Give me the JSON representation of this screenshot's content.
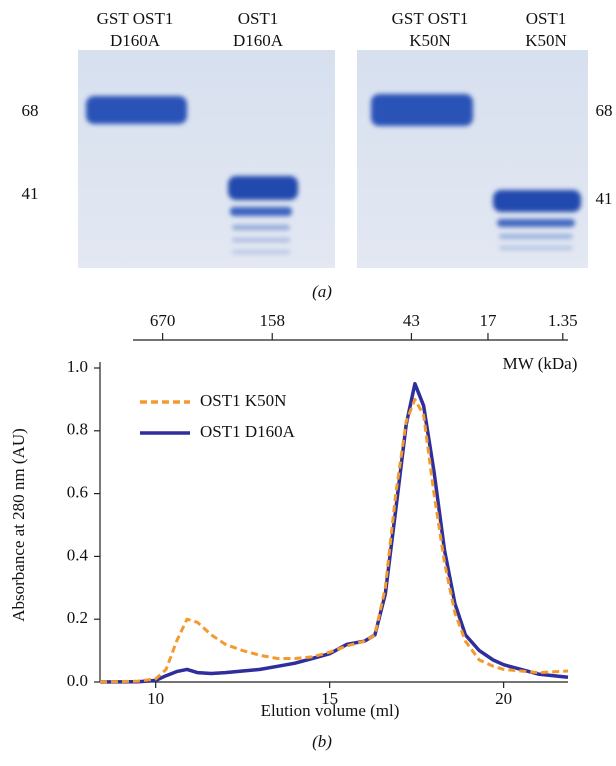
{
  "panel_a": {
    "label": "(a)",
    "gels": [
      {
        "lanes": [
          [
            "GST OST1",
            "D160A"
          ],
          [
            "OST1",
            "D160A"
          ]
        ],
        "markers": [
          "68",
          "41"
        ]
      },
      {
        "lanes": [
          [
            "GST OST1",
            "K50N"
          ],
          [
            "OST1",
            "K50N"
          ]
        ],
        "markers": [
          "68",
          "41"
        ]
      }
    ]
  },
  "chart_data": {
    "type": "line",
    "panel_label": "(b)",
    "x_label": "Elution volume (ml)",
    "y_label": "Absorbance at 280 nm (AU)",
    "x2_label": "MW (kDa)",
    "x": [
      8.4,
      9.5,
      10,
      10.3,
      10.6,
      10.9,
      11.2,
      11.6,
      12,
      12.5,
      13,
      13.5,
      14,
      14.5,
      15,
      15.5,
      16,
      16.3,
      16.6,
      16.9,
      17.2,
      17.45,
      17.7,
      18,
      18.3,
      18.6,
      18.9,
      19.3,
      19.7,
      20,
      21,
      21.85
    ],
    "series": [
      {
        "name": "OST1 K50N",
        "color": "#f39a2e",
        "dash": true,
        "values": [
          0,
          0.003,
          0.01,
          0.04,
          0.13,
          0.2,
          0.19,
          0.15,
          0.12,
          0.1,
          0.085,
          0.075,
          0.075,
          0.08,
          0.095,
          0.115,
          0.13,
          0.15,
          0.3,
          0.6,
          0.83,
          0.9,
          0.85,
          0.6,
          0.38,
          0.22,
          0.13,
          0.07,
          0.05,
          0.04,
          0.03,
          0.035
        ]
      },
      {
        "name": "OST1 D160A",
        "color": "#2e2e9c",
        "dash": false,
        "values": [
          0,
          0.001,
          0.005,
          0.02,
          0.033,
          0.04,
          0.03,
          0.027,
          0.03,
          0.035,
          0.04,
          0.05,
          0.06,
          0.075,
          0.09,
          0.12,
          0.13,
          0.15,
          0.28,
          0.55,
          0.82,
          0.95,
          0.88,
          0.67,
          0.42,
          0.25,
          0.15,
          0.1,
          0.07,
          0.055,
          0.025,
          0.015
        ]
      }
    ],
    "xlim": [
      8.4,
      21.85
    ],
    "xticks": [
      10,
      15,
      20
    ],
    "ylim": [
      0,
      1.0
    ],
    "yticks": [
      {
        "value": 0,
        "label": "0.0"
      },
      0.2,
      0.4,
      0.6,
      0.8,
      {
        "value": 1.0,
        "label": "1.0"
      }
    ],
    "x2ticks": [
      {
        "value": 10.2,
        "label": "670"
      },
      {
        "value": 13.35,
        "label": "158"
      },
      {
        "value": 17.35,
        "label": "43"
      },
      {
        "value": 19.55,
        "label": "17"
      },
      {
        "value": 21.7,
        "label": "1.35"
      }
    ],
    "legend": "upper left",
    "grid": false
  }
}
